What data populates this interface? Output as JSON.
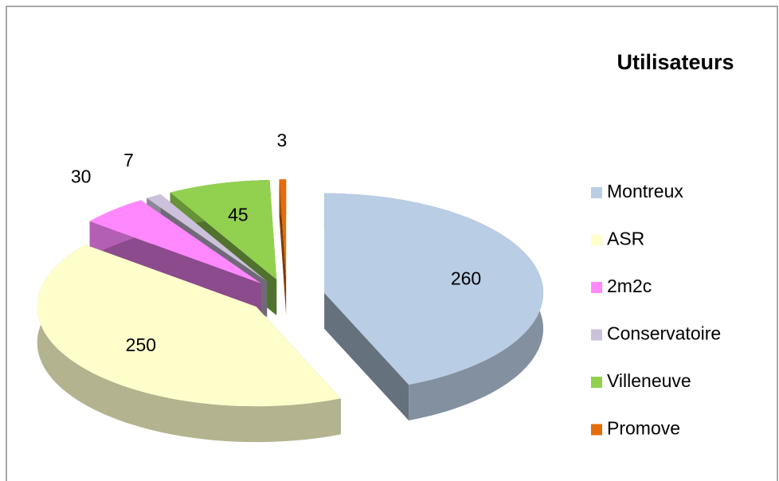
{
  "chart_data": {
    "type": "pie",
    "title": "Utilisateurs",
    "categories": [
      "Montreux",
      "ASR",
      "2m2c",
      "Conservatoire",
      "Villeneuve",
      "Promove"
    ],
    "values": [
      260,
      250,
      30,
      7,
      45,
      3
    ],
    "colors": [
      "#b9cde5",
      "#ffffcc",
      "#ff88ff",
      "#ccc1da",
      "#92d050",
      "#e46c0a"
    ],
    "legend": "right"
  }
}
